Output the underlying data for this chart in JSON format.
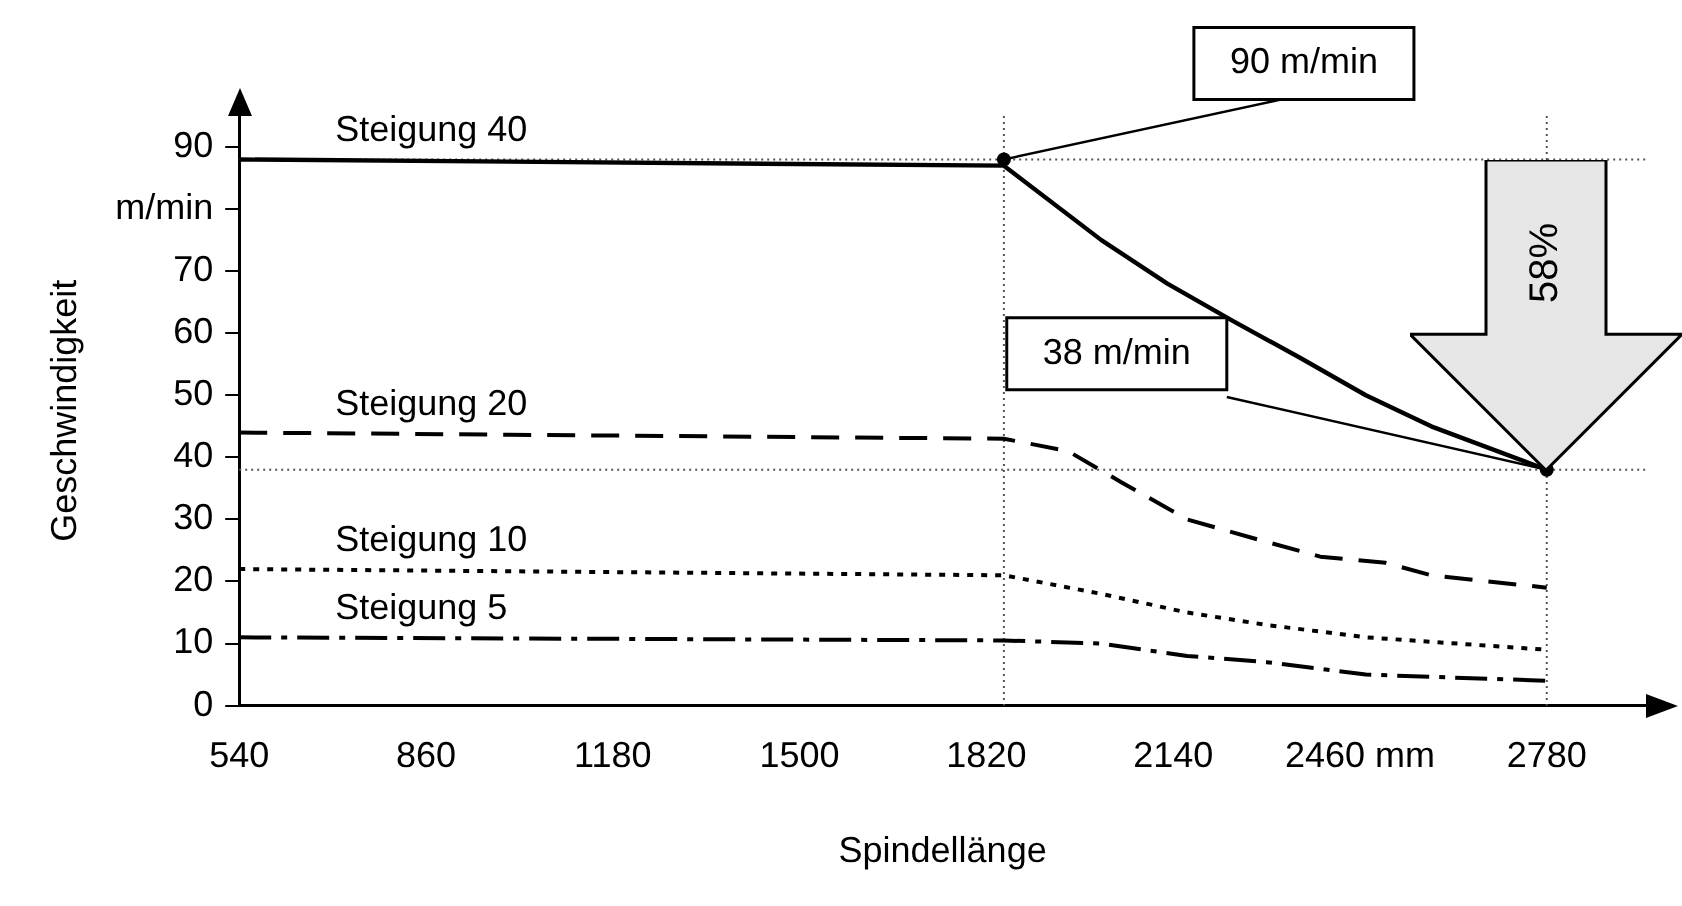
{
  "chart_data": {
    "type": "line",
    "xlabel": "Spindellänge",
    "ylabel": "Geschwindigkeit",
    "xlim": [
      540,
      2950
    ],
    "ylim": [
      0,
      95
    ],
    "xticks": [
      540,
      860,
      1180,
      1500,
      1820,
      2140,
      {
        "value": 2460,
        "label": "2460 mm"
      },
      2780
    ],
    "yticks": [
      0,
      10,
      20,
      30,
      40,
      50,
      60,
      70,
      {
        "value": 80,
        "label": "m/min"
      },
      90
    ],
    "grid": false,
    "legend": false,
    "marker": "none",
    "series": [
      {
        "name": "Steigung 40",
        "color": "#000000",
        "line_style": "solid",
        "x": [
          540,
          1850,
          2017,
          2130,
          2242,
          2358,
          2470,
          2582,
          2780
        ],
        "values": [
          88,
          87,
          75,
          68,
          62,
          56,
          50,
          45,
          38
        ]
      },
      {
        "name": "Steigung 20",
        "color": "#000000",
        "line_style": "dashed",
        "x": [
          540,
          1850,
          1960,
          2051,
          2164,
          2276,
          2392,
          2504,
          2582,
          2780
        ],
        "values": [
          44,
          43,
          41,
          36,
          30,
          27,
          24,
          23,
          21,
          19
        ]
      },
      {
        "name": "Steigung 10",
        "color": "#000000",
        "line_style": "dotted",
        "x": [
          540,
          1850,
          2017,
          2164,
          2300,
          2470,
          2780
        ],
        "values": [
          22,
          21,
          18,
          15,
          13,
          11,
          9
        ]
      },
      {
        "name": "Steigung 5",
        "color": "#000000",
        "line_style": "dashdot",
        "x": [
          540,
          1850,
          2017,
          2164,
          2300,
          2470,
          2780
        ],
        "values": [
          11,
          10.5,
          10,
          8,
          7,
          5,
          4
        ]
      }
    ],
    "ref_lines": [
      {
        "axis": "y",
        "value": 88,
        "line_style": "dotted"
      },
      {
        "axis": "y",
        "value": 38,
        "line_style": "dotted"
      },
      {
        "axis": "x",
        "value": 1850,
        "line_style": "dotted"
      },
      {
        "axis": "x",
        "value": 2780,
        "line_style": "dotted"
      }
    ],
    "annotations": [
      {
        "text": "90 m/min",
        "x": 1850,
        "y": 88
      },
      {
        "text": "38 m/min",
        "x": 2780,
        "y": 38
      },
      "58%"
    ]
  }
}
